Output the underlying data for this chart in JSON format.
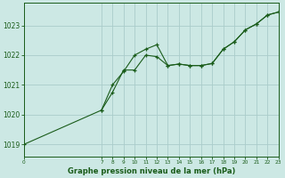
{
  "title": "Graphe pression niveau de la mer (hPa)",
  "bg_color": "#cce8e4",
  "line_color": "#1a5c1a",
  "grid_color": "#aaccca",
  "text_color": "#1a5c1a",
  "series1_x": [
    0,
    7,
    8,
    9,
    10,
    11,
    12,
    13,
    14,
    15,
    16,
    17,
    18,
    19,
    20,
    21,
    22,
    23
  ],
  "series1_y": [
    1019.0,
    1020.15,
    1021.0,
    1021.45,
    1022.0,
    1022.2,
    1022.35,
    1021.65,
    1021.7,
    1021.65,
    1021.65,
    1021.72,
    1022.2,
    1022.45,
    1022.85,
    1023.05,
    1023.35,
    1023.45
  ],
  "series2_x": [
    7,
    8,
    9,
    10,
    11,
    12,
    13,
    14,
    15,
    16,
    17,
    18,
    19,
    20,
    21,
    22,
    23
  ],
  "series2_y": [
    1020.15,
    1020.75,
    1021.5,
    1021.5,
    1022.0,
    1021.95,
    1021.65,
    1021.7,
    1021.65,
    1021.65,
    1021.72,
    1022.2,
    1022.45,
    1022.85,
    1023.05,
    1023.35,
    1023.45
  ],
  "ylim": [
    1018.6,
    1023.75
  ],
  "yticks": [
    1019,
    1020,
    1021,
    1022,
    1023
  ],
  "xticks": [
    0,
    7,
    8,
    9,
    10,
    11,
    12,
    13,
    14,
    15,
    16,
    17,
    18,
    19,
    20,
    21,
    22,
    23
  ],
  "xlim": [
    0,
    23
  ]
}
